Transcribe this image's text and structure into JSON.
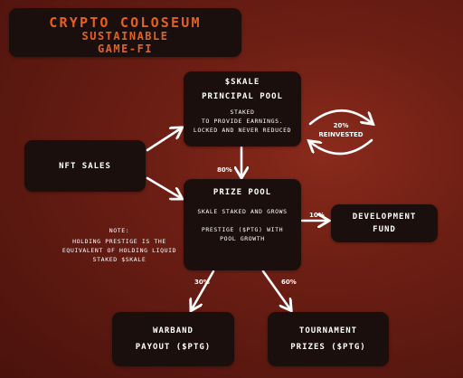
{
  "title": {
    "line1": "CRYPTO COLOSEUM",
    "line2": "SUSTAINABLE",
    "line3": "GAME-FI"
  },
  "principal_pool": {
    "line1": "$SKALE",
    "line2": "PRINCIPAL POOL",
    "desc1": "STAKED",
    "desc2": "TO PROVIDE EARNINGS.",
    "desc3": "LOCKED AND NEVER REDUCED"
  },
  "nft_sales": {
    "label": "NFT SALES"
  },
  "prize_pool": {
    "title": "PRIZE POOL",
    "desc1": "SKALE STAKED AND GROWS",
    "desc2": "PRESTIGE ($PTG) WITH",
    "desc3": "POOL GROWTH"
  },
  "development_fund": {
    "line1": "DEVELOPMENT",
    "line2": "FUND"
  },
  "warband_payout": {
    "line1": "WARBAND",
    "line2": "PAYOUT ($PTG)"
  },
  "tournament_prizes": {
    "line1": "TOURNAMENT",
    "line2": "PRIZES ($PTG)"
  },
  "note": {
    "line1": "NOTE:",
    "line2": "HOLDING PRESTIGE IS THE",
    "line3": "EQUIVALENT OF HOLDING LIQUID",
    "line4": "STAKED $SKALE"
  },
  "labels": {
    "reinvested_pct": "20%",
    "reinvested": "REINVESTED",
    "to_prize_pool": "80%",
    "to_development": "10%",
    "to_warband": "30%",
    "to_tournament": "60%"
  },
  "colors": {
    "background": "#6e1f14",
    "box": "#1b0f0d",
    "title_accent": "#e2611e",
    "text": "#ffffff"
  }
}
